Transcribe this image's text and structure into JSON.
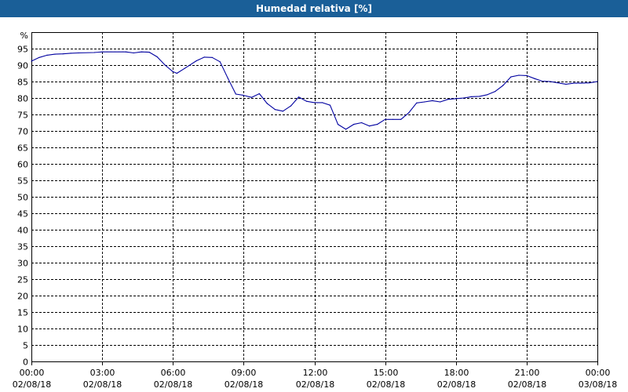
{
  "chart_data": {
    "type": "line",
    "title": "Humedad relativa [%]",
    "ylabel": "%",
    "xlabel": "",
    "ylim": [
      0,
      100
    ],
    "yticks": [
      0,
      5,
      10,
      15,
      20,
      25,
      30,
      35,
      40,
      45,
      50,
      55,
      60,
      65,
      70,
      75,
      80,
      85,
      90,
      95
    ],
    "xlim": [
      "2018-08-02 00:00",
      "2018-08-03 00:00"
    ],
    "xticks": [
      {
        "time": "00:00",
        "date": "02/08/18"
      },
      {
        "time": "03:00",
        "date": "02/08/18"
      },
      {
        "time": "06:00",
        "date": "02/08/18"
      },
      {
        "time": "09:00",
        "date": "02/08/18"
      },
      {
        "time": "12:00",
        "date": "02/08/18"
      },
      {
        "time": "15:00",
        "date": "02/08/18"
      },
      {
        "time": "18:00",
        "date": "02/08/18"
      },
      {
        "time": "21:00",
        "date": "02/08/18"
      },
      {
        "time": "00:00",
        "date": "03/08/18"
      }
    ],
    "grid": true,
    "colors": {
      "line": "#0000a0",
      "header": "#1a5f98"
    },
    "series": [
      {
        "x": [
          "2018-08-02 00:00",
          "2018-08-02 00:20",
          "2018-08-02 00:40",
          "2018-08-02 01:00",
          "2018-08-02 01:20",
          "2018-08-02 01:40",
          "2018-08-02 02:00",
          "2018-08-02 02:40",
          "2018-08-02 03:00",
          "2018-08-02 04:00",
          "2018-08-02 04:20",
          "2018-08-02 04:40",
          "2018-08-02 05:00",
          "2018-08-02 05:20",
          "2018-08-02 05:40",
          "2018-08-02 06:00",
          "2018-08-02 06:10",
          "2018-08-02 06:30",
          "2018-08-02 07:00",
          "2018-08-02 07:20",
          "2018-08-02 07:40",
          "2018-08-02 08:00",
          "2018-08-02 08:20",
          "2018-08-02 08:40",
          "2018-08-02 09:00",
          "2018-08-02 09:20",
          "2018-08-02 09:40",
          "2018-08-02 10:00",
          "2018-08-02 10:20",
          "2018-08-02 10:40",
          "2018-08-02 11:00",
          "2018-08-02 11:20",
          "2018-08-02 11:40",
          "2018-08-02 12:00",
          "2018-08-02 12:20",
          "2018-08-02 12:40",
          "2018-08-02 13:00",
          "2018-08-02 13:20",
          "2018-08-02 13:40",
          "2018-08-02 14:00",
          "2018-08-02 14:20",
          "2018-08-02 14:40",
          "2018-08-02 15:00",
          "2018-08-02 15:20",
          "2018-08-02 15:40",
          "2018-08-02 16:00",
          "2018-08-02 16:20",
          "2018-08-02 16:40",
          "2018-08-02 17:00",
          "2018-08-02 17:20",
          "2018-08-02 17:40",
          "2018-08-02 18:00",
          "2018-08-02 18:20",
          "2018-08-02 18:40",
          "2018-08-02 19:00",
          "2018-08-02 19:20",
          "2018-08-02 19:40",
          "2018-08-02 20:00",
          "2018-08-02 20:20",
          "2018-08-02 20:40",
          "2018-08-02 21:00",
          "2018-08-02 21:20",
          "2018-08-02 21:40",
          "2018-08-02 22:00",
          "2018-08-02 22:20",
          "2018-08-02 22:40",
          "2018-08-02 23:00",
          "2018-08-02 23:20",
          "2018-08-02 23:40",
          "2018-08-03 00:00"
        ],
        "values": [
          91.2,
          92.3,
          93.0,
          93.3,
          93.4,
          93.6,
          93.7,
          93.8,
          94.0,
          94.0,
          93.7,
          94.0,
          93.9,
          92.5,
          90.0,
          88.0,
          87.5,
          89.0,
          91.3,
          92.4,
          92.3,
          91.0,
          86.0,
          81.2,
          80.8,
          80.2,
          81.3,
          78.3,
          76.5,
          76.0,
          77.6,
          80.3,
          79.0,
          78.6,
          78.6,
          77.8,
          72.0,
          70.5,
          72.0,
          72.5,
          71.5,
          72.0,
          73.5,
          73.5,
          73.5,
          75.5,
          78.5,
          78.8,
          79.2,
          78.8,
          79.6,
          79.8,
          80.0,
          80.4,
          80.5,
          81.0,
          82.0,
          83.8,
          86.4,
          86.9,
          86.8,
          85.9,
          85.1,
          85.0,
          84.6,
          84.2,
          84.5,
          84.5,
          84.6,
          85.0
        ]
      }
    ]
  }
}
